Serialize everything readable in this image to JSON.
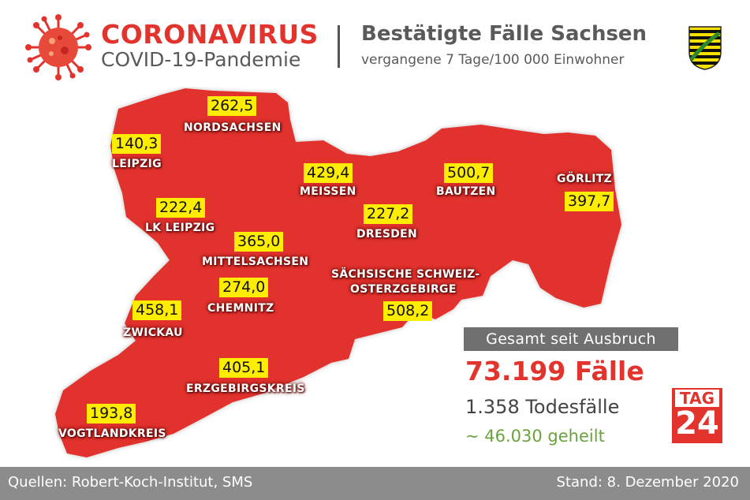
{
  "header": {
    "brand_title": "CORONAVIRUS",
    "brand_subtitle": "COVID-19-Pandemie",
    "title": "Bestätigte Fälle Sachsen",
    "subtitle": "vergangene 7 Tage/100 000 Einwohner",
    "icons": [
      "coronavirus-icon",
      "saxony-coat-of-arms-icon"
    ]
  },
  "map": {
    "region": "Sachsen",
    "fill_color": "#e2332d",
    "value_highlight_color": "#ffed00",
    "districts": [
      {
        "name": "NORDSACHSEN",
        "value": "262,5"
      },
      {
        "name": "LEIPZIG",
        "value": "140,3"
      },
      {
        "name": "MEISSEN",
        "value": "429,4"
      },
      {
        "name": "BAUTZEN",
        "value": "500,7"
      },
      {
        "name": "GÖRLITZ",
        "value": "397,7"
      },
      {
        "name": "LK LEIPZIG",
        "value": "222,4"
      },
      {
        "name": "DRESDEN",
        "value": "227,2"
      },
      {
        "name": "MITTELSACHSEN",
        "value": "365,0"
      },
      {
        "name": "SÄCHSISCHE SCHWEIZ-",
        "name2": "OSTERZGEBIRGE",
        "value": "508,2"
      },
      {
        "name": "CHEMNITZ",
        "value": "274,0"
      },
      {
        "name": "ZWICKAU",
        "value": "458,1"
      },
      {
        "name": "ERZGEBIRGSKREIS",
        "value": "405,1"
      },
      {
        "name": "VOGTLANDKREIS",
        "value": "193,8"
      }
    ]
  },
  "stats": {
    "heading": "Gesamt seit Ausbruch",
    "total_cases": "73.199 Fälle",
    "deaths": "1.358 Todesfälle",
    "recovered": "~ 46.030 geheilt",
    "total_color": "#e2332d",
    "recovered_color": "#6aa33b"
  },
  "logo": {
    "top": "TAG",
    "number": "24"
  },
  "footer": {
    "sources": "Quellen: Robert-Koch-Institut, SMS",
    "date": "Stand: 8. Dezember 2020"
  }
}
